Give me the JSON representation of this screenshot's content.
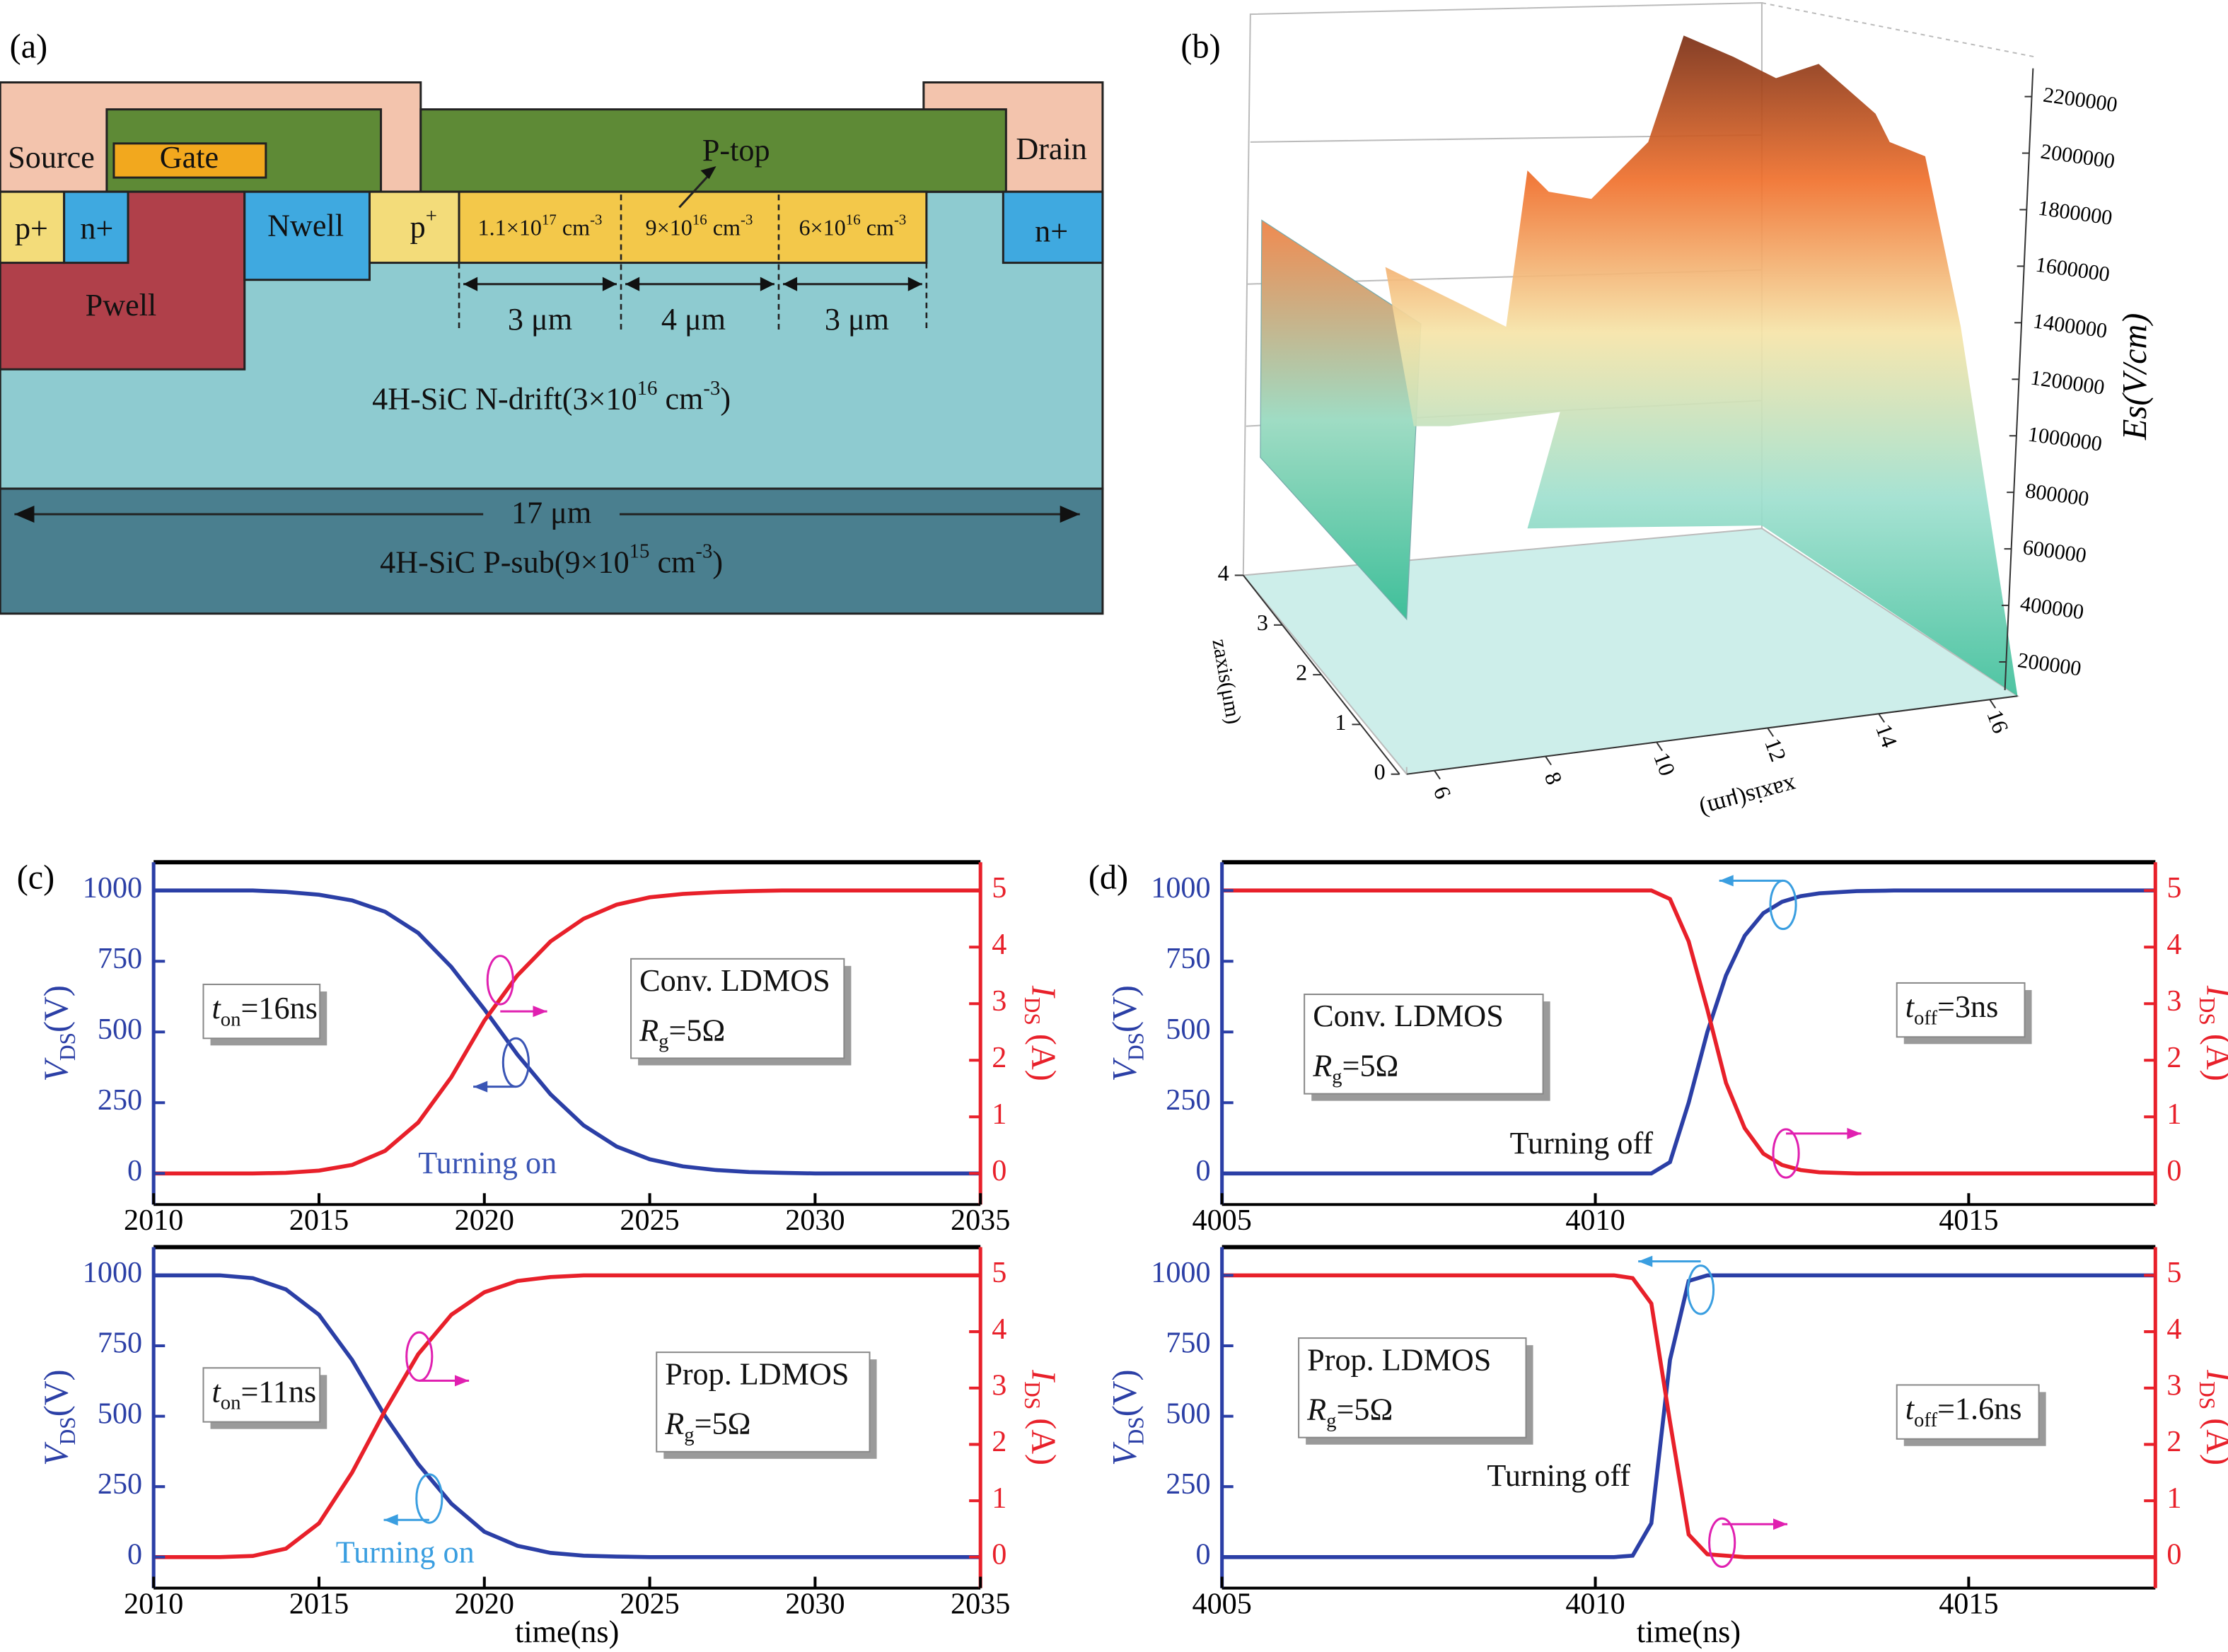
{
  "panel_labels": [
    "(a)",
    "(b)",
    "(c)",
    "(d)"
  ],
  "diagram": {
    "labels": [
      "Source",
      "Gate",
      "P-top",
      "Drain",
      "p+",
      "n+",
      "Nwell",
      [
        {
          "text": "p"
        },
        {
          "text": "+",
          "style": "sup"
        }
      ],
      "Pwell",
      "n+",
      [
        {
          "text": "1.1×10"
        },
        {
          "text": "17",
          "style": "sup"
        },
        {
          "text": " cm"
        },
        {
          "text": "-3",
          "style": "sup"
        }
      ],
      [
        {
          "text": "9×10"
        },
        {
          "text": "16",
          "style": "sup"
        },
        {
          "text": " cm"
        },
        {
          "text": "-3",
          "style": "sup"
        }
      ],
      [
        {
          "text": "6×10"
        },
        {
          "text": "16",
          "style": "sup"
        },
        {
          "text": " cm"
        },
        {
          "text": "-3",
          "style": "sup"
        }
      ],
      "3 μm",
      "4 μm",
      "3 μm",
      [
        {
          "text": "4H-SiC N-drift(3×10"
        },
        {
          "text": "16",
          "style": "sup"
        },
        {
          "text": " cm"
        },
        {
          "text": "-3",
          "style": "sup"
        },
        {
          "text": ")"
        }
      ],
      "17 μm",
      [
        {
          "text": "4H-SiC P-sub(9×10"
        },
        {
          "text": "15",
          "style": "sup"
        },
        {
          "text": " cm"
        },
        {
          "text": "-3",
          "style": "sup"
        },
        {
          "text": ")"
        }
      ]
    ]
  },
  "chart_data": [
    {
      "type": "surface",
      "zlabel": "Es(V/cm)",
      "xlabel": "xaxis(μm)",
      "ylabel": "zaxis(μm)",
      "zlim": [
        100000,
        2300000
      ],
      "zticks": [
        200000,
        400000,
        600000,
        800000,
        1000000,
        1200000,
        1400000,
        1600000,
        1800000,
        2000000,
        2200000
      ],
      "xlim": [
        5.5,
        16.5
      ],
      "xticks": [
        6,
        8,
        10,
        12,
        14,
        16
      ],
      "ylim": [
        0,
        4
      ],
      "yticks": [
        0,
        1,
        2,
        3,
        4
      ]
    },
    {
      "type": "line",
      "xlim": [
        2010,
        2035
      ],
      "xticks": [
        2010,
        2015,
        2020,
        2025,
        2030,
        2035
      ],
      "ylim": [
        -110,
        1100
      ],
      "yticks": [
        0,
        250,
        500,
        750,
        1000
      ],
      "y2lim": [
        -0.55,
        5.5
      ],
      "y2ticks": [
        0,
        1,
        2,
        3,
        4,
        5
      ],
      "ylabel": [
        {
          "text": "V",
          "style": "italic"
        },
        {
          "text": "DS",
          "style": "sub"
        },
        {
          "text": "(V)"
        }
      ],
      "y2label": [
        {
          "text": "I",
          "style": "italic"
        },
        {
          "text": "DS",
          "style": "sub"
        },
        {
          "text": " (A)"
        }
      ],
      "x": [
        2010,
        2011,
        2012,
        2013,
        2014,
        2015,
        2016,
        2017,
        2018,
        2019,
        2020,
        2021,
        2022,
        2023,
        2024,
        2025,
        2026,
        2027,
        2028,
        2029,
        2030,
        2031,
        2032,
        2033,
        2034,
        2035
      ],
      "series": [
        {
          "color": "#2b3fa6",
          "axis": "y",
          "values": [
            1000,
            1000,
            1000,
            1000,
            995,
            985,
            965,
            925,
            850,
            730,
            580,
            420,
            280,
            170,
            95,
            50,
            25,
            12,
            5,
            2,
            0,
            0,
            0,
            0,
            0,
            0
          ]
        },
        {
          "color": "#e8202a",
          "axis": "y2",
          "values": [
            0,
            0,
            0,
            0,
            0.01,
            0.05,
            0.15,
            0.4,
            0.9,
            1.7,
            2.7,
            3.5,
            4.1,
            4.5,
            4.75,
            4.88,
            4.94,
            4.97,
            4.99,
            5,
            5,
            5,
            5,
            5,
            5,
            5
          ]
        }
      ],
      "boxes": [
        [
          [
            {
              "text": "t",
              "style": "italic"
            },
            {
              "text": "on",
              "style": "sub"
            },
            {
              "text": "=16ns"
            }
          ]
        ],
        [
          [
            {
              "text": "Conv. LDMOS"
            }
          ],
          [
            {
              "text": "R",
              "style": "italic"
            },
            {
              "text": "g",
              "style": "sub"
            },
            {
              "text": "=5Ω"
            }
          ]
        ]
      ],
      "annotations": [
        {
          "text": "Turning on",
          "color": "#3a55b5"
        }
      ]
    },
    {
      "type": "line",
      "xlim": [
        2010,
        2035
      ],
      "xticks": [
        2010,
        2015,
        2020,
        2025,
        2030,
        2035
      ],
      "ylim": [
        -110,
        1100
      ],
      "yticks": [
        0,
        250,
        500,
        750,
        1000
      ],
      "y2lim": [
        -0.55,
        5.5
      ],
      "y2ticks": [
        0,
        1,
        2,
        3,
        4,
        5
      ],
      "ylabel": [
        {
          "text": "V",
          "style": "italic"
        },
        {
          "text": "DS",
          "style": "sub"
        },
        {
          "text": "(V)"
        }
      ],
      "y2label": [
        {
          "text": "I",
          "style": "italic"
        },
        {
          "text": "DS",
          "style": "sub"
        },
        {
          "text": " (A)"
        }
      ],
      "xlabel": "time(ns)",
      "x": [
        2010,
        2011,
        2012,
        2013,
        2014,
        2015,
        2016,
        2017,
        2018,
        2019,
        2020,
        2021,
        2022,
        2023,
        2024,
        2025,
        2026,
        2027,
        2028,
        2029,
        2030,
        2031,
        2032,
        2033,
        2034,
        2035
      ],
      "series": [
        {
          "color": "#2b3fa6",
          "axis": "y",
          "values": [
            1000,
            1000,
            1000,
            990,
            950,
            860,
            700,
            500,
            330,
            190,
            90,
            40,
            15,
            5,
            2,
            0,
            0,
            0,
            0,
            0,
            0,
            0,
            0,
            0,
            0,
            0
          ]
        },
        {
          "color": "#e8202a",
          "axis": "y2",
          "values": [
            0,
            0,
            0,
            0.02,
            0.15,
            0.6,
            1.5,
            2.6,
            3.6,
            4.3,
            4.7,
            4.9,
            4.97,
            5,
            5,
            5,
            5,
            5,
            5,
            5,
            5,
            5,
            5,
            5,
            5,
            5
          ]
        }
      ],
      "boxes": [
        [
          [
            {
              "text": "t",
              "style": "italic"
            },
            {
              "text": "on",
              "style": "sub"
            },
            {
              "text": "=11ns"
            }
          ]
        ],
        [
          [
            {
              "text": "Prop. LDMOS"
            }
          ],
          [
            {
              "text": "R",
              "style": "italic"
            },
            {
              "text": "g",
              "style": "sub"
            },
            {
              "text": "=5Ω"
            }
          ]
        ]
      ],
      "annotations": [
        {
          "text": "Turning on",
          "color": "#3a9ee0"
        }
      ]
    },
    {
      "type": "line",
      "xlim": [
        4005,
        4017.5
      ],
      "xticks": [
        4005,
        4010,
        4015
      ],
      "ylim": [
        -110,
        1100
      ],
      "yticks": [
        0,
        250,
        500,
        750,
        1000
      ],
      "y2lim": [
        -0.55,
        5.5
      ],
      "y2ticks": [
        0,
        1,
        2,
        3,
        4,
        5
      ],
      "ylabel": [
        {
          "text": "V",
          "style": "italic"
        },
        {
          "text": "DS",
          "style": "sub"
        },
        {
          "text": "(V)"
        }
      ],
      "y2label": [
        {
          "text": "I",
          "style": "italic"
        },
        {
          "text": "DS",
          "style": "sub"
        },
        {
          "text": " (A)"
        }
      ],
      "x": [
        4005,
        4010.5,
        4010.75,
        4011,
        4011.25,
        4011.5,
        4011.75,
        4012,
        4012.25,
        4012.5,
        4012.75,
        4013,
        4013.5,
        4014,
        4017.5
      ],
      "series": [
        {
          "color": "#2b3fa6",
          "axis": "y",
          "values": [
            0,
            0,
            0,
            40,
            250,
            500,
            700,
            840,
            920,
            960,
            980,
            990,
            998,
            1000,
            1000
          ]
        },
        {
          "color": "#e8202a",
          "axis": "y2",
          "values": [
            5,
            5,
            5,
            4.85,
            4.1,
            2.9,
            1.6,
            0.8,
            0.35,
            0.15,
            0.06,
            0.02,
            0,
            0,
            0
          ]
        }
      ],
      "boxes": [
        [
          [
            {
              "text": "Conv. LDMOS"
            }
          ],
          [
            {
              "text": "R",
              "style": "italic"
            },
            {
              "text": "g",
              "style": "sub"
            },
            {
              "text": "=5Ω"
            }
          ]
        ],
        [
          [
            {
              "text": "t",
              "style": "italic"
            },
            {
              "text": "off",
              "style": "sub"
            },
            {
              "text": "=3ns"
            }
          ]
        ]
      ],
      "annotations": [
        {
          "text": "Turning off",
          "color": "#111111"
        }
      ]
    },
    {
      "type": "line",
      "xlim": [
        4005,
        4017.5
      ],
      "xticks": [
        4005,
        4010,
        4015
      ],
      "ylim": [
        -110,
        1100
      ],
      "yticks": [
        0,
        250,
        500,
        750,
        1000
      ],
      "y2lim": [
        -0.55,
        5.5
      ],
      "y2ticks": [
        0,
        1,
        2,
        3,
        4,
        5
      ],
      "ylabel": [
        {
          "text": "V",
          "style": "italic"
        },
        {
          "text": "DS",
          "style": "sub"
        },
        {
          "text": "(V)"
        }
      ],
      "y2label": [
        {
          "text": "I",
          "style": "italic"
        },
        {
          "text": "DS",
          "style": "sub"
        },
        {
          "text": " (A)"
        }
      ],
      "xlabel": "time(ns)",
      "x": [
        4005,
        4010.25,
        4010.5,
        4010.75,
        4011,
        4011.25,
        4011.5,
        4012,
        4017.5
      ],
      "series": [
        {
          "color": "#2b3fa6",
          "axis": "y",
          "values": [
            0,
            0,
            5,
            120,
            700,
            980,
            1000,
            1000,
            1000
          ]
        },
        {
          "color": "#e8202a",
          "axis": "y2",
          "values": [
            5,
            5,
            4.95,
            4.5,
            2.4,
            0.4,
            0.05,
            0,
            0
          ]
        }
      ],
      "boxes": [
        [
          [
            {
              "text": "Prop. LDMOS"
            }
          ],
          [
            {
              "text": "R",
              "style": "italic"
            },
            {
              "text": "g",
              "style": "sub"
            },
            {
              "text": "=5Ω"
            }
          ]
        ],
        [
          [
            {
              "text": "t",
              "style": "italic"
            },
            {
              "text": "off",
              "style": "sub"
            },
            {
              "text": "=1.6ns"
            }
          ]
        ]
      ],
      "annotations": [
        {
          "text": "Turning off",
          "color": "#111111"
        }
      ]
    }
  ]
}
